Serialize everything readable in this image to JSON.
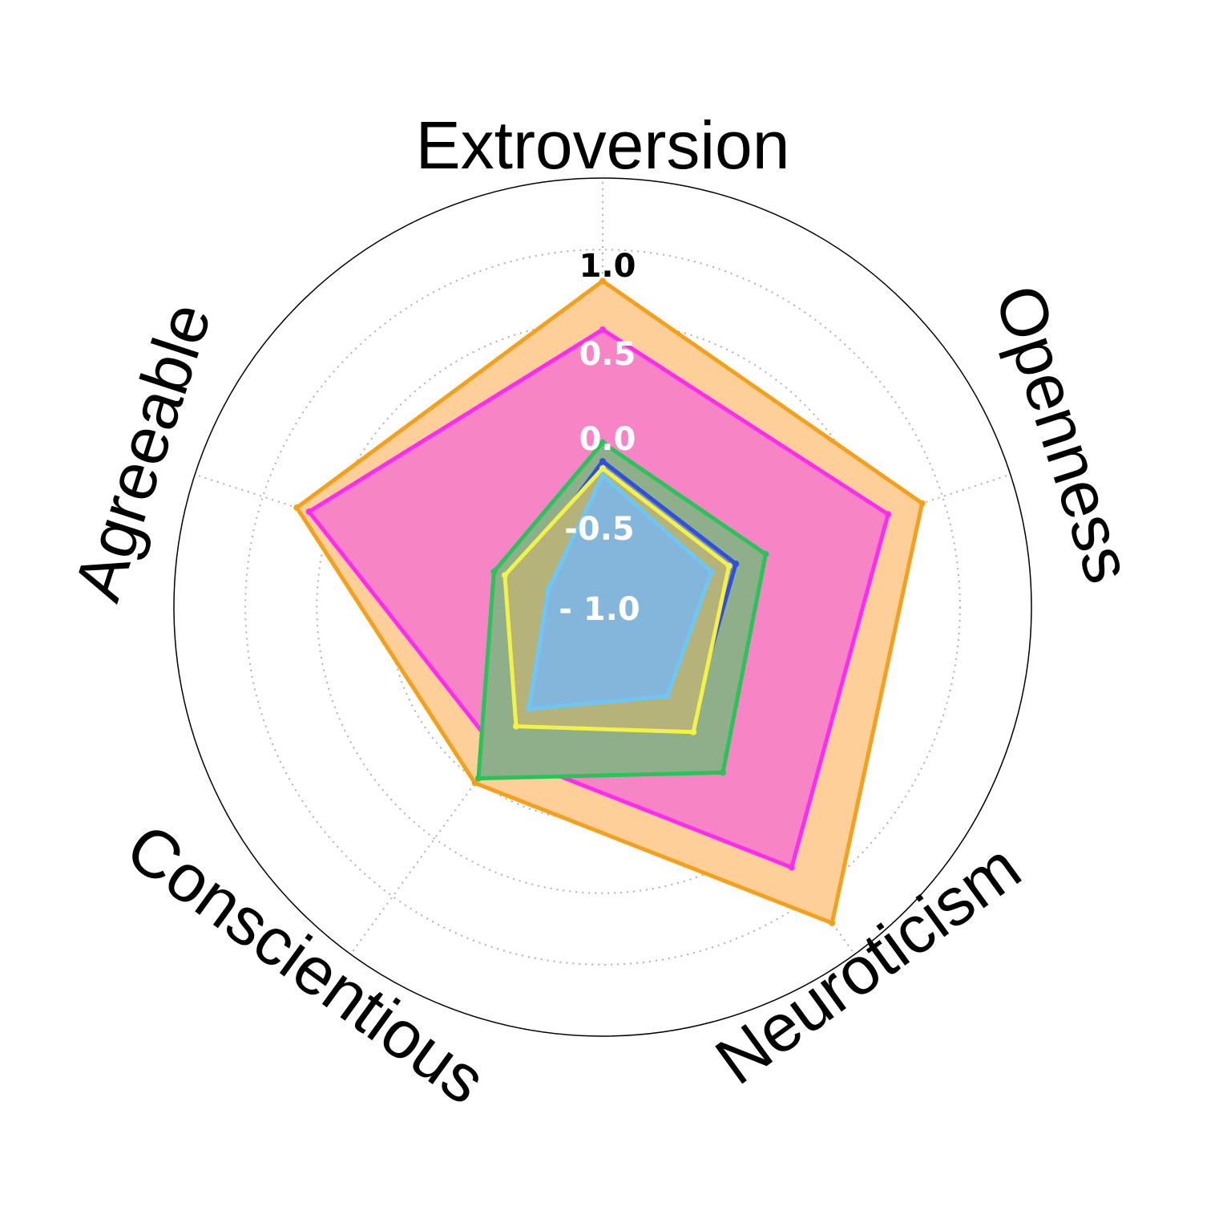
{
  "chart_data": {
    "type": "radar",
    "axes": [
      "Extroversion",
      "Openness",
      "Neuroticism",
      "Conscientious",
      "Agreeable"
    ],
    "r_ticks": [
      "1.0",
      "0.5",
      "0.0",
      "-0.5",
      "- 1.0"
    ],
    "r_tick_values": [
      1.0,
      0.5,
      0.0,
      -0.5,
      -1.0
    ],
    "rlim": [
      -1.5,
      1.5
    ],
    "grid": true,
    "series": [
      {
        "color": "#f5a01a",
        "fill": "#ffcf99",
        "values": [
          0.78,
          0.85,
          1.23,
          0.02,
          0.75
        ]
      },
      {
        "color": "#ff2bf0",
        "fill": "#f785c6",
        "values": [
          0.44,
          0.6,
          0.75,
          -0.25,
          0.66
        ]
      },
      {
        "color": "#27c45a",
        "fill": "#8fae8a",
        "values": [
          -0.35,
          -0.3,
          -0.07,
          -0.02,
          -0.7
        ]
      },
      {
        "color": "#2f50de",
        "fill": "#8292b0",
        "values": [
          -0.48,
          -0.52,
          -0.47,
          -0.57,
          -0.86
        ]
      },
      {
        "color": "#f2f249",
        "fill": "#b5b27a",
        "values": [
          -0.53,
          -0.57,
          -0.42,
          -0.47,
          -0.78
        ]
      },
      {
        "color": "#6ec6f5",
        "fill": "#84b6db",
        "values": [
          -0.58,
          -0.7,
          -0.73,
          -0.62,
          -1.1
        ]
      }
    ]
  }
}
